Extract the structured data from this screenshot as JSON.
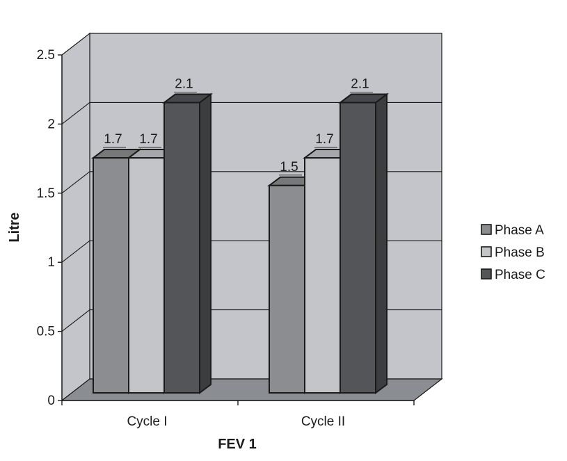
{
  "chart_data": {
    "type": "bar",
    "style": "3d-clustered",
    "categories": [
      "Cycle I",
      "Cycle II"
    ],
    "series": [
      {
        "name": "Phase A",
        "values": [
          1.7,
          1.5
        ],
        "color": "#8c8d90"
      },
      {
        "name": "Phase B",
        "values": [
          1.7,
          1.7
        ],
        "color": "#c3c5c9"
      },
      {
        "name": "Phase C",
        "values": [
          2.1,
          2.1
        ],
        "color": "#545558"
      }
    ],
    "data_labels": [
      [
        "1.7",
        "1.5"
      ],
      [
        "1.7",
        "1.7"
      ],
      [
        "2.1",
        "2.1"
      ]
    ],
    "xlabel": "FEV 1",
    "ylabel": "Litre",
    "ylim": [
      0,
      2.5
    ],
    "yticks": [
      "0",
      "0.5",
      "1",
      "1.5",
      "2",
      "2.5"
    ],
    "grid": true,
    "legend_position": "right",
    "wall_color": "#c3c5ca",
    "floor_color": "#8a8d91"
  }
}
